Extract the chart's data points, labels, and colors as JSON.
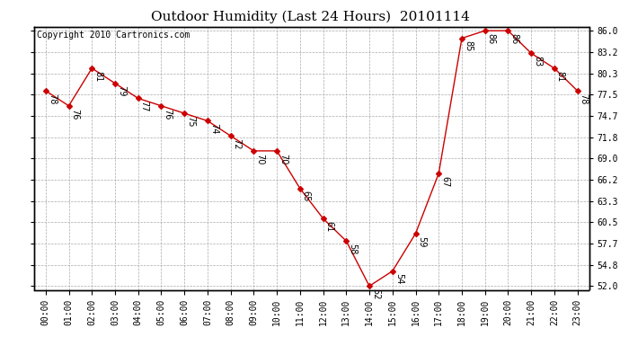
{
  "title": "Outdoor Humidity (Last 24 Hours)  20101114",
  "copyright": "Copyright 2010 Cartronics.com",
  "x_labels": [
    "00:00",
    "01:00",
    "02:00",
    "03:00",
    "04:00",
    "05:00",
    "06:00",
    "07:00",
    "08:00",
    "09:00",
    "10:00",
    "11:00",
    "12:00",
    "13:00",
    "14:00",
    "15:00",
    "16:00",
    "17:00",
    "18:00",
    "19:00",
    "20:00",
    "21:00",
    "22:00",
    "23:00"
  ],
  "y_values": [
    78,
    76,
    81,
    79,
    77,
    76,
    75,
    74,
    72,
    70,
    70,
    65,
    61,
    58,
    52,
    54,
    59,
    67,
    85,
    86,
    86,
    83,
    81,
    78
  ],
  "line_color": "#cc0000",
  "marker_color": "#cc0000",
  "bg_color": "#ffffff",
  "grid_color": "#aaaaaa",
  "border_color": "#000000",
  "title_fontsize": 11,
  "copyright_fontsize": 7,
  "tick_fontsize": 7,
  "annot_fontsize": 7,
  "ylim_min": 51.5,
  "ylim_max": 86.5,
  "yticks": [
    52.0,
    54.8,
    57.7,
    60.5,
    63.3,
    66.2,
    69.0,
    71.8,
    74.7,
    77.5,
    80.3,
    83.2,
    86.0
  ]
}
